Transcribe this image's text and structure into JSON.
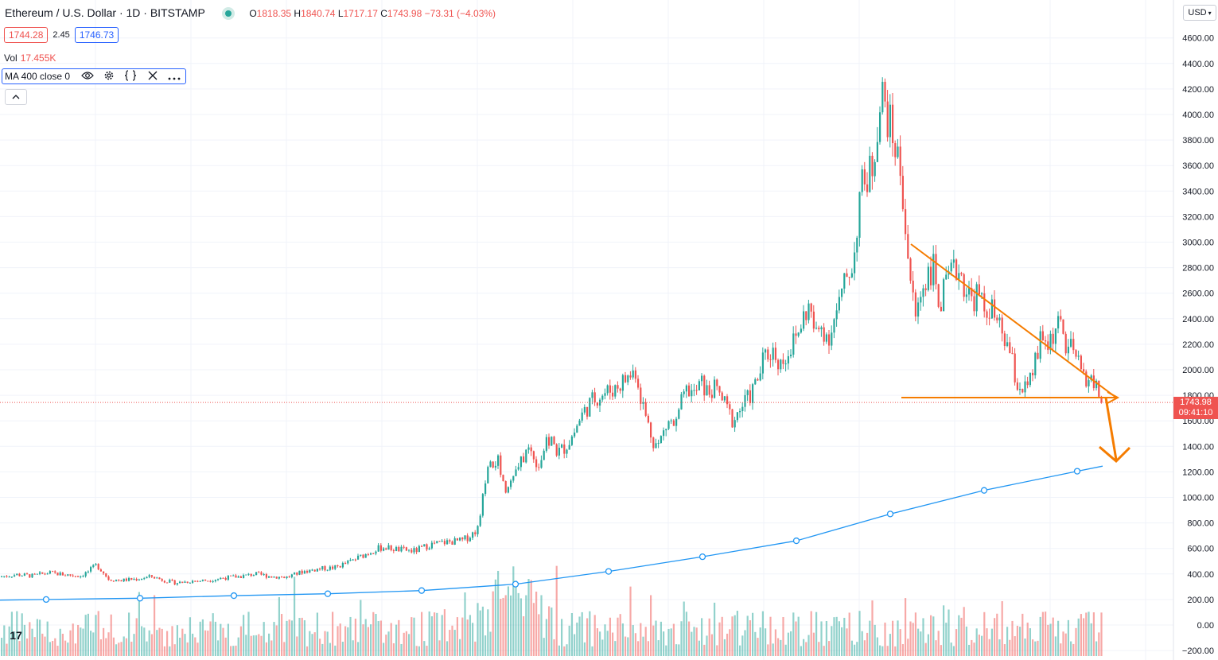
{
  "header": {
    "title": "Ethereum / U.S. Dollar · 1D · BITSTAMP",
    "ohlc": {
      "open_label": "O",
      "open": "1818.35",
      "high_label": "H",
      "high": "1840.74",
      "low_label": "L",
      "low": "1717.17",
      "close_label": "C",
      "close": "1743.98",
      "change": "−73.31 (−4.03%)"
    },
    "bid": "1744.28",
    "spread": "2.45",
    "ask": "1746.73",
    "volume_label": "Vol",
    "volume_value": "17.455K",
    "indicator_label": "MA 400 close 0",
    "collapse_glyph": "^",
    "currency": "USD",
    "logo_text": "17"
  },
  "price_tag": {
    "price": "1743.98",
    "countdown": "09:41:10"
  },
  "colors": {
    "up": "#26a69a",
    "down": "#ef5350",
    "ma": "#2196f3",
    "annotation": "#f57c00",
    "grid": "#f0f3fa",
    "text": "#131722"
  },
  "icons": [
    "eye-icon",
    "gear-icon",
    "code-braces-icon",
    "close-icon",
    "more-icon"
  ],
  "chart_data": {
    "type": "candlestick",
    "symbol": "Ethereum / U.S. Dollar",
    "interval": "1D",
    "exchange": "BITSTAMP",
    "y_axis": {
      "ticks": [
        -200,
        0,
        200,
        400,
        600,
        800,
        1000,
        1200,
        1400,
        1600,
        1800,
        2000,
        2200,
        2400,
        2600,
        2800,
        3000,
        3200,
        3400,
        3600,
        3800,
        4000,
        4200,
        4400,
        4600
      ],
      "tick_labels": [
        "−200.00",
        "0.00",
        "200.00",
        "400.00",
        "600.00",
        "800.00",
        "1000.00",
        "1200.00",
        "1400.00",
        "1600.00",
        "1800.00",
        "2000.00",
        "2200.00",
        "2400.00",
        "2600.00",
        "2800.00",
        "3000.00",
        "3200.00",
        "3400.00",
        "3600.00",
        "3800.00",
        "4000.00",
        "4200.00",
        "4400.00",
        "4600.00"
      ],
      "range": [
        -220,
        4780
      ],
      "position": "right"
    },
    "last_price": 1743.98,
    "close_path": [
      [
        0,
        380
      ],
      [
        20,
        395
      ],
      [
        40,
        385
      ],
      [
        60,
        410
      ],
      [
        80,
        395
      ],
      [
        100,
        385
      ],
      [
        110,
        420
      ],
      [
        120,
        470
      ],
      [
        128,
        420
      ],
      [
        135,
        360
      ],
      [
        150,
        350
      ],
      [
        170,
        360
      ],
      [
        190,
        380
      ],
      [
        205,
        350
      ],
      [
        220,
        330
      ],
      [
        240,
        345
      ],
      [
        260,
        350
      ],
      [
        280,
        370
      ],
      [
        300,
        380
      ],
      [
        320,
        400
      ],
      [
        340,
        380
      ],
      [
        360,
        375
      ],
      [
        380,
        420
      ],
      [
        400,
        440
      ],
      [
        420,
        450
      ],
      [
        440,
        500
      ],
      [
        460,
        560
      ],
      [
        470,
        590
      ],
      [
        480,
        610
      ],
      [
        500,
        590
      ],
      [
        520,
        580
      ],
      [
        540,
        630
      ],
      [
        560,
        650
      ],
      [
        580,
        660
      ],
      [
        590,
        700
      ],
      [
        600,
        760
      ],
      [
        606,
        1000
      ],
      [
        612,
        1200
      ],
      [
        618,
        1250
      ],
      [
        624,
        1300
      ],
      [
        630,
        1150
      ],
      [
        636,
        1050
      ],
      [
        642,
        1150
      ],
      [
        648,
        1200
      ],
      [
        656,
        1300
      ],
      [
        662,
        1380
      ],
      [
        668,
        1350
      ],
      [
        676,
        1250
      ],
      [
        684,
        1400
      ],
      [
        692,
        1450
      ],
      [
        700,
        1350
      ],
      [
        710,
        1400
      ],
      [
        720,
        1500
      ],
      [
        728,
        1620
      ],
      [
        736,
        1700
      ],
      [
        744,
        1760
      ],
      [
        752,
        1800
      ],
      [
        760,
        1820
      ],
      [
        770,
        1850
      ],
      [
        780,
        1900
      ],
      [
        790,
        1950
      ],
      [
        798,
        2000
      ],
      [
        804,
        1800
      ],
      [
        812,
        1600
      ],
      [
        820,
        1450
      ],
      [
        826,
        1400
      ],
      [
        832,
        1500
      ],
      [
        840,
        1600
      ],
      [
        848,
        1550
      ],
      [
        856,
        1750
      ],
      [
        864,
        1850
      ],
      [
        872,
        1800
      ],
      [
        880,
        1900
      ],
      [
        888,
        1820
      ],
      [
        896,
        1850
      ],
      [
        904,
        1800
      ],
      [
        912,
        1700
      ],
      [
        920,
        1600
      ],
      [
        930,
        1700
      ],
      [
        940,
        1780
      ],
      [
        950,
        1900
      ],
      [
        960,
        2100
      ],
      [
        970,
        2150
      ],
      [
        980,
        2050
      ],
      [
        990,
        2150
      ],
      [
        1000,
        2250
      ],
      [
        1008,
        2400
      ],
      [
        1016,
        2500
      ],
      [
        1024,
        2250
      ],
      [
        1032,
        2350
      ],
      [
        1040,
        2250
      ],
      [
        1048,
        2400
      ],
      [
        1056,
        2550
      ],
      [
        1064,
        2750
      ],
      [
        1072,
        2850
      ],
      [
        1080,
        3400
      ],
      [
        1088,
        3500
      ],
      [
        1096,
        3600
      ],
      [
        1102,
        3950
      ],
      [
        1108,
        4150
      ],
      [
        1114,
        4000
      ],
      [
        1120,
        3850
      ],
      [
        1126,
        3700
      ],
      [
        1132,
        3500
      ],
      [
        1138,
        3050
      ],
      [
        1144,
        2650
      ],
      [
        1150,
        2400
      ],
      [
        1156,
        2600
      ],
      [
        1164,
        2750
      ],
      [
        1172,
        2800
      ],
      [
        1180,
        2500
      ],
      [
        1188,
        2650
      ],
      [
        1196,
        2750
      ],
      [
        1204,
        2800
      ],
      [
        1212,
        2650
      ],
      [
        1220,
        2550
      ],
      [
        1228,
        2600
      ],
      [
        1236,
        2450
      ],
      [
        1244,
        2500
      ],
      [
        1252,
        2350
      ],
      [
        1260,
        2250
      ],
      [
        1268,
        2150
      ],
      [
        1276,
        1900
      ],
      [
        1284,
        1850
      ],
      [
        1292,
        1850
      ],
      [
        1300,
        2050
      ],
      [
        1308,
        2250
      ],
      [
        1316,
        2200
      ],
      [
        1324,
        2300
      ],
      [
        1332,
        2350
      ],
      [
        1340,
        2150
      ],
      [
        1348,
        2150
      ],
      [
        1356,
        2000
      ],
      [
        1364,
        1950
      ],
      [
        1372,
        1900
      ],
      [
        1380,
        1830
      ],
      [
        1386,
        1744
      ]
    ],
    "ma400_markers": [
      [
        58,
        200
      ],
      [
        176,
        210
      ],
      [
        294,
        230
      ],
      [
        412,
        245
      ],
      [
        530,
        270
      ],
      [
        648,
        320
      ],
      [
        765,
        420
      ],
      [
        883,
        535
      ],
      [
        1001,
        660
      ],
      [
        1119,
        870
      ],
      [
        1237,
        1055
      ],
      [
        1354,
        1205
      ]
    ],
    "ma400_end": [
      1386,
      1245
    ],
    "volume_overlay": true
  }
}
